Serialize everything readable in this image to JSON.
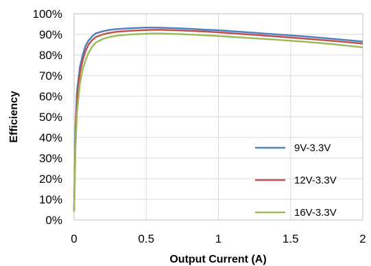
{
  "chart_data": {
    "type": "line",
    "title": "",
    "xlabel": "Output Current (A)",
    "ylabel": "Efficiency",
    "xlim": [
      0,
      2
    ],
    "ylim": [
      0,
      100
    ],
    "x_ticks": [
      "0",
      "0.5",
      "1",
      "1.5",
      "2"
    ],
    "y_ticks": [
      "0%",
      "10%",
      "20%",
      "30%",
      "40%",
      "50%",
      "60%",
      "70%",
      "80%",
      "90%",
      "100%"
    ],
    "grid": true,
    "legend_position": "bottom-right",
    "series": [
      {
        "name": "9V-3.3V",
        "color": "#4f81bd",
        "x": [
          0,
          0.01,
          0.02,
          0.04,
          0.06,
          0.08,
          0.1,
          0.125,
          0.15,
          0.2,
          0.25,
          0.3,
          0.4,
          0.5,
          0.55,
          0.6,
          0.7,
          0.8,
          0.9,
          1.0,
          1.2,
          1.4,
          1.6,
          1.8,
          2.0
        ],
        "y": [
          5,
          45,
          62,
          74,
          80,
          84.5,
          87,
          89,
          90.5,
          91.5,
          92.2,
          92.6,
          93.0,
          93.3,
          93.3,
          93.2,
          93.0,
          92.7,
          92.3,
          92.0,
          91.0,
          90.0,
          89.0,
          87.8,
          86.5
        ]
      },
      {
        "name": "12V-3.3V",
        "color": "#c0504d",
        "x": [
          0,
          0.01,
          0.02,
          0.04,
          0.06,
          0.08,
          0.1,
          0.125,
          0.15,
          0.2,
          0.25,
          0.3,
          0.4,
          0.5,
          0.55,
          0.6,
          0.7,
          0.8,
          0.9,
          1.0,
          1.2,
          1.4,
          1.6,
          1.8,
          2.0
        ],
        "y": [
          4.5,
          40,
          58,
          71,
          77.5,
          82,
          85,
          87.2,
          88.7,
          90.0,
          90.8,
          91.3,
          91.8,
          92.1,
          92.2,
          92.2,
          92.0,
          91.7,
          91.4,
          91.0,
          90.0,
          89.0,
          87.9,
          86.8,
          85.5
        ]
      },
      {
        "name": "16V-3.3V",
        "color": "#9bbb59",
        "x": [
          0,
          0.01,
          0.02,
          0.04,
          0.06,
          0.08,
          0.1,
          0.125,
          0.15,
          0.2,
          0.25,
          0.3,
          0.4,
          0.5,
          0.55,
          0.6,
          0.7,
          0.8,
          0.9,
          1.0,
          1.2,
          1.4,
          1.6,
          1.8,
          2.0
        ],
        "y": [
          4,
          35,
          52,
          66,
          73,
          77.5,
          81,
          84,
          86,
          87.8,
          88.8,
          89.4,
          90.0,
          90.3,
          90.4,
          90.4,
          90.2,
          89.9,
          89.6,
          89.2,
          88.3,
          87.4,
          86.4,
          85.2,
          83.7
        ]
      }
    ]
  }
}
